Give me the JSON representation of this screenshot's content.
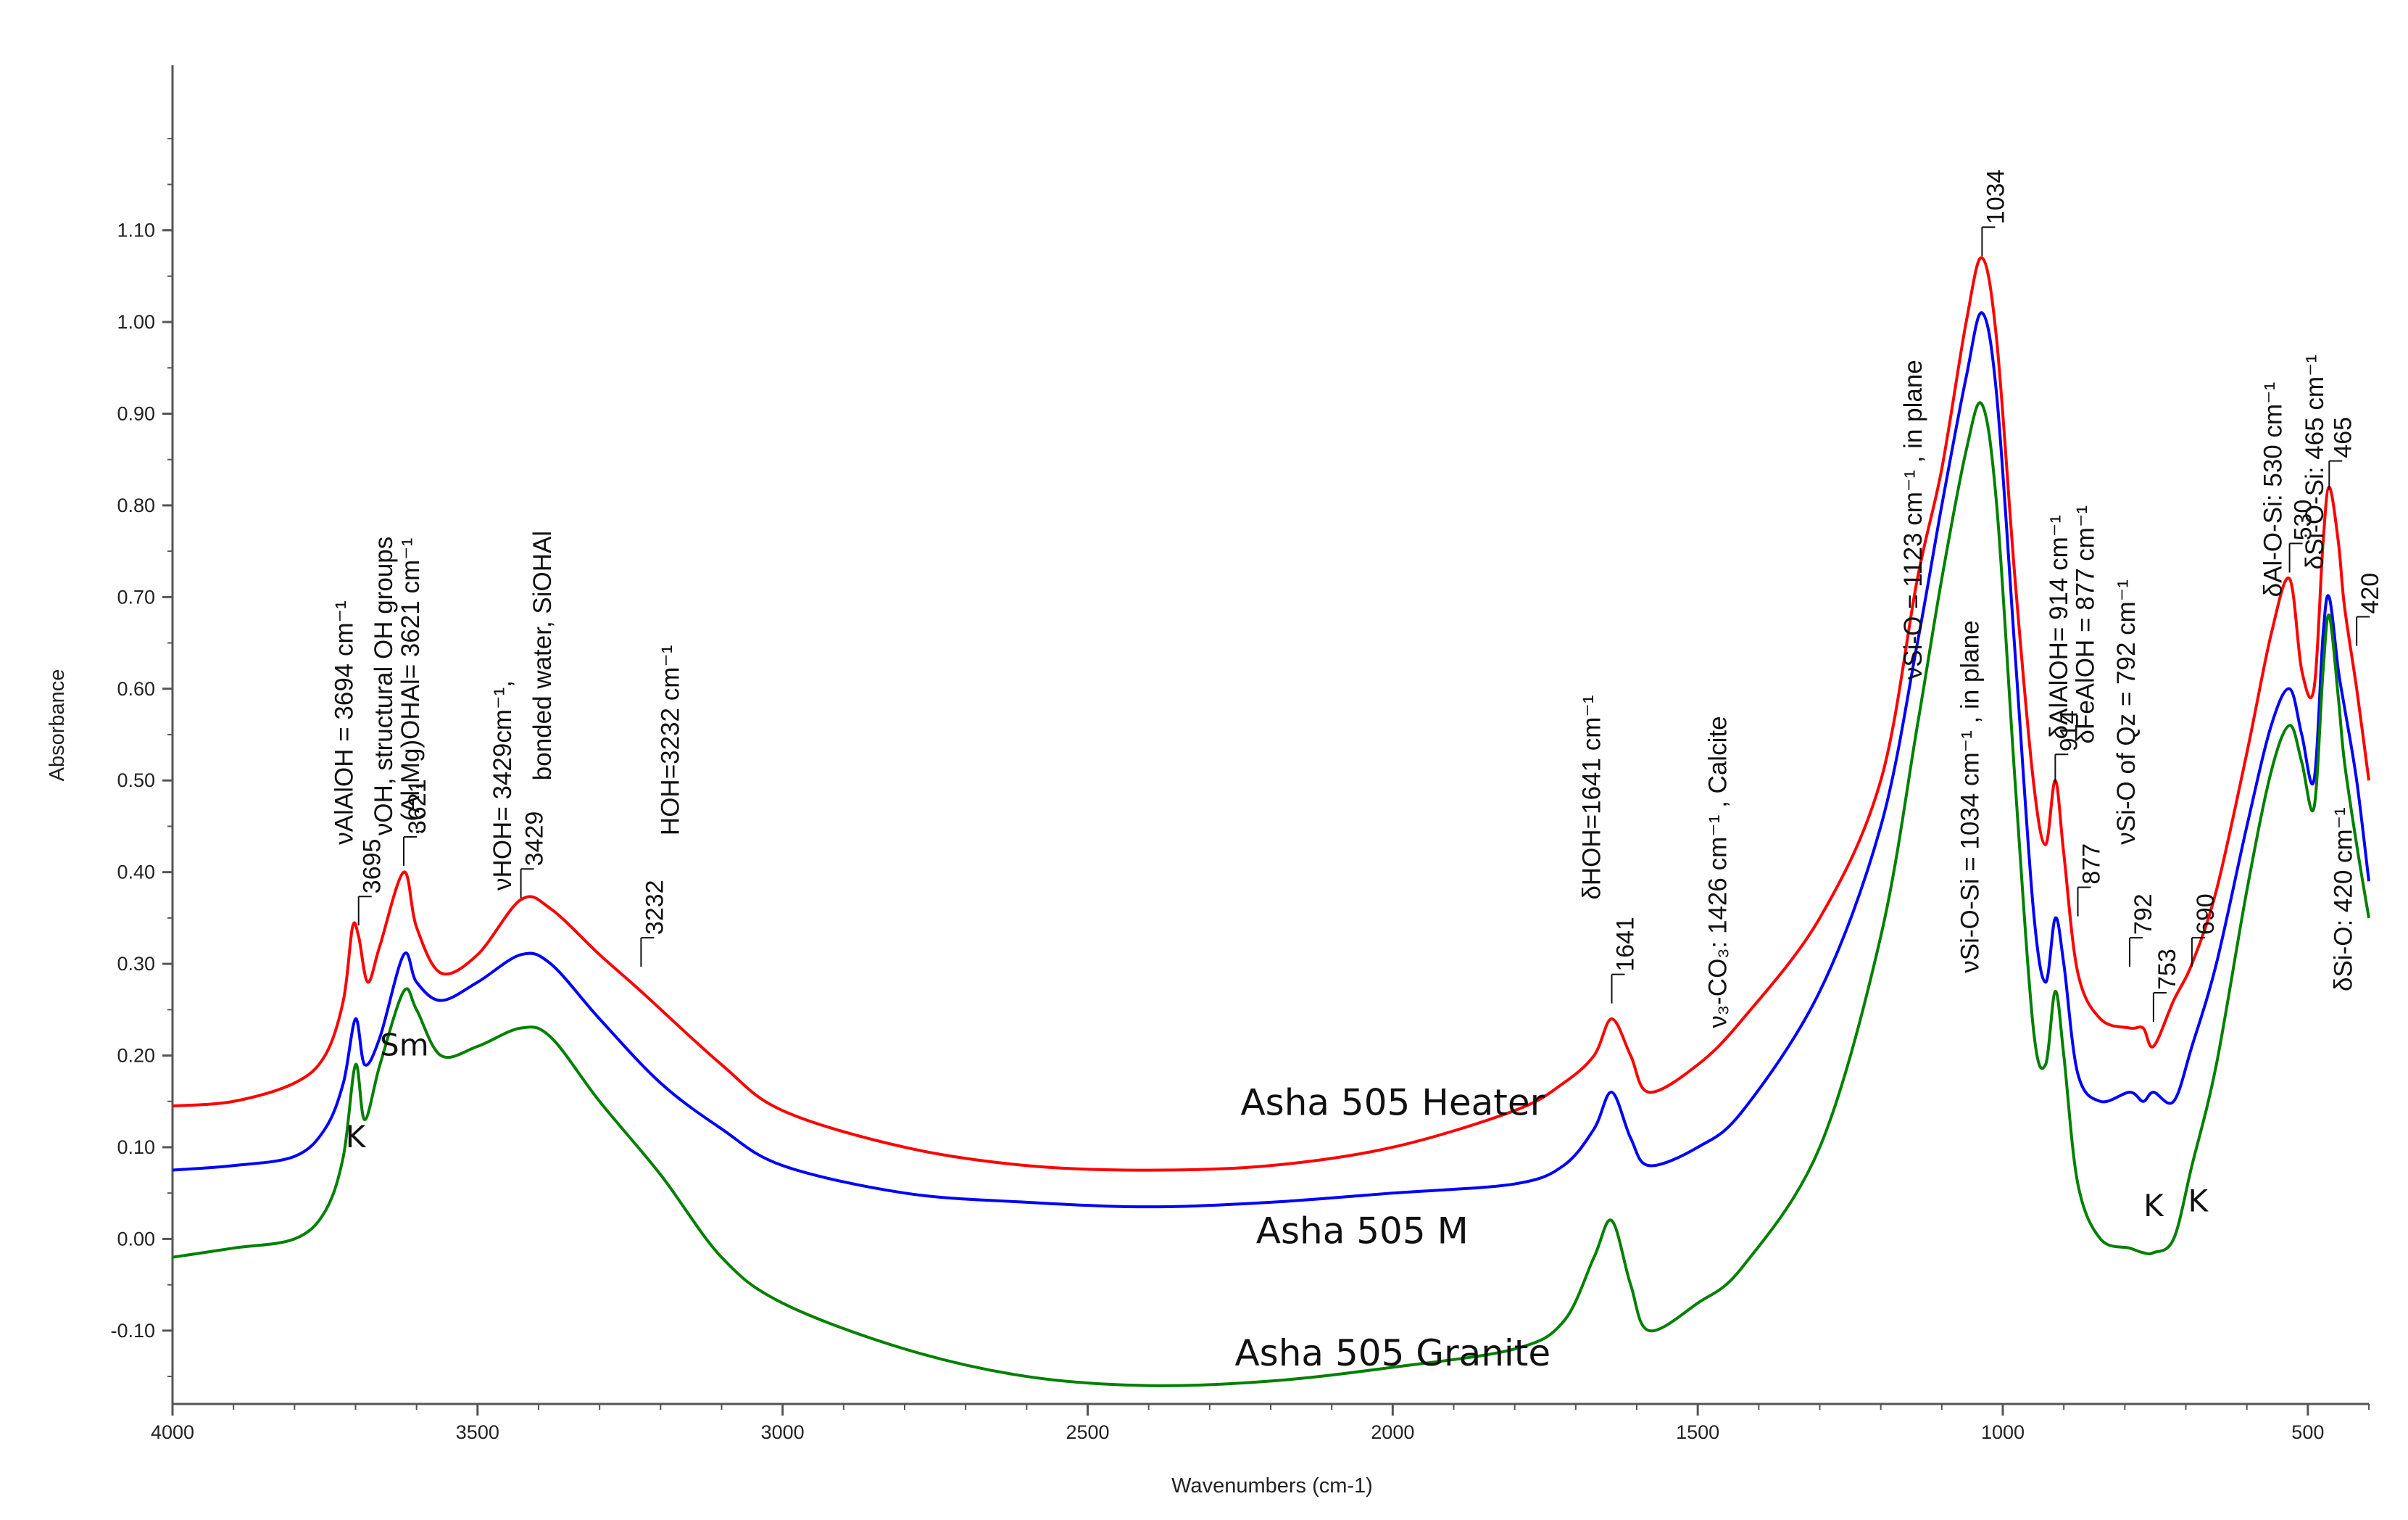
{
  "chart_data": {
    "type": "line",
    "title": "",
    "xlabel": "Wavenumbers (cm-1)",
    "ylabel": "Absorbance",
    "xlim": [
      4000,
      400
    ],
    "ylim": [
      -0.18,
      1.28
    ],
    "x_ticks": [
      4000,
      3500,
      3000,
      2500,
      2000,
      1500,
      1000,
      500
    ],
    "y_ticks": [
      -0.1,
      0.0,
      0.1,
      0.2,
      0.3,
      0.4,
      0.5,
      0.6,
      0.7,
      0.8,
      0.9,
      1.0,
      1.1
    ],
    "series": [
      {
        "name": "Asha 505 Heater",
        "color": "#ff0000",
        "label_at": [
          2000,
          0.135
        ],
        "points": [
          [
            4000,
            0.145
          ],
          [
            3900,
            0.15
          ],
          [
            3800,
            0.17
          ],
          [
            3750,
            0.2
          ],
          [
            3720,
            0.26
          ],
          [
            3705,
            0.34
          ],
          [
            3695,
            0.33
          ],
          [
            3680,
            0.28
          ],
          [
            3660,
            0.32
          ],
          [
            3621,
            0.4
          ],
          [
            3600,
            0.34
          ],
          [
            3560,
            0.29
          ],
          [
            3500,
            0.31
          ],
          [
            3429,
            0.37
          ],
          [
            3380,
            0.36
          ],
          [
            3300,
            0.31
          ],
          [
            3232,
            0.27
          ],
          [
            3100,
            0.19
          ],
          [
            3000,
            0.14
          ],
          [
            2800,
            0.1
          ],
          [
            2600,
            0.08
          ],
          [
            2400,
            0.075
          ],
          [
            2200,
            0.08
          ],
          [
            2000,
            0.1
          ],
          [
            1800,
            0.14
          ],
          [
            1720,
            0.17
          ],
          [
            1670,
            0.2
          ],
          [
            1641,
            0.24
          ],
          [
            1610,
            0.2
          ],
          [
            1580,
            0.16
          ],
          [
            1500,
            0.19
          ],
          [
            1426,
            0.24
          ],
          [
            1300,
            0.35
          ],
          [
            1200,
            0.5
          ],
          [
            1140,
            0.72
          ],
          [
            1100,
            0.84
          ],
          [
            1060,
            1.0
          ],
          [
            1034,
            1.07
          ],
          [
            1010,
            0.98
          ],
          [
            980,
            0.72
          ],
          [
            950,
            0.5
          ],
          [
            930,
            0.43
          ],
          [
            914,
            0.5
          ],
          [
            900,
            0.42
          ],
          [
            877,
            0.29
          ],
          [
            840,
            0.24
          ],
          [
            792,
            0.23
          ],
          [
            770,
            0.23
          ],
          [
            753,
            0.21
          ],
          [
            720,
            0.26
          ],
          [
            690,
            0.3
          ],
          [
            650,
            0.38
          ],
          [
            600,
            0.53
          ],
          [
            560,
            0.66
          ],
          [
            530,
            0.72
          ],
          [
            510,
            0.62
          ],
          [
            490,
            0.6
          ],
          [
            475,
            0.76
          ],
          [
            465,
            0.82
          ],
          [
            450,
            0.76
          ],
          [
            440,
            0.69
          ],
          [
            420,
            0.6
          ],
          [
            400,
            0.5
          ]
        ]
      },
      {
        "name": "Asha 505 M",
        "color": "#0000ff",
        "label_at": [
          2050,
          -0.005
        ],
        "points": [
          [
            4000,
            0.075
          ],
          [
            3900,
            0.08
          ],
          [
            3800,
            0.09
          ],
          [
            3750,
            0.12
          ],
          [
            3720,
            0.17
          ],
          [
            3700,
            0.24
          ],
          [
            3685,
            0.19
          ],
          [
            3660,
            0.22
          ],
          [
            3621,
            0.31
          ],
          [
            3600,
            0.28
          ],
          [
            3560,
            0.26
          ],
          [
            3500,
            0.28
          ],
          [
            3429,
            0.31
          ],
          [
            3380,
            0.3
          ],
          [
            3300,
            0.24
          ],
          [
            3200,
            0.17
          ],
          [
            3100,
            0.12
          ],
          [
            3000,
            0.08
          ],
          [
            2800,
            0.05
          ],
          [
            2600,
            0.04
          ],
          [
            2400,
            0.035
          ],
          [
            2200,
            0.04
          ],
          [
            2000,
            0.05
          ],
          [
            1800,
            0.06
          ],
          [
            1720,
            0.08
          ],
          [
            1670,
            0.12
          ],
          [
            1641,
            0.16
          ],
          [
            1610,
            0.11
          ],
          [
            1580,
            0.08
          ],
          [
            1500,
            0.1
          ],
          [
            1426,
            0.14
          ],
          [
            1300,
            0.27
          ],
          [
            1200,
            0.45
          ],
          [
            1140,
            0.65
          ],
          [
            1100,
            0.8
          ],
          [
            1060,
            0.94
          ],
          [
            1034,
            1.01
          ],
          [
            1010,
            0.92
          ],
          [
            980,
            0.64
          ],
          [
            950,
            0.36
          ],
          [
            930,
            0.28
          ],
          [
            914,
            0.35
          ],
          [
            900,
            0.3
          ],
          [
            877,
            0.18
          ],
          [
            840,
            0.15
          ],
          [
            792,
            0.16
          ],
          [
            770,
            0.15
          ],
          [
            753,
            0.16
          ],
          [
            720,
            0.15
          ],
          [
            690,
            0.21
          ],
          [
            650,
            0.3
          ],
          [
            600,
            0.45
          ],
          [
            560,
            0.56
          ],
          [
            530,
            0.6
          ],
          [
            510,
            0.55
          ],
          [
            490,
            0.5
          ],
          [
            475,
            0.66
          ],
          [
            465,
            0.7
          ],
          [
            450,
            0.62
          ],
          [
            440,
            0.58
          ],
          [
            420,
            0.5
          ],
          [
            400,
            0.39
          ]
        ]
      },
      {
        "name": "Asha 505 Granite",
        "color": "#008000",
        "label_at": [
          2000,
          -0.138
        ],
        "points": [
          [
            4000,
            -0.02
          ],
          [
            3900,
            -0.01
          ],
          [
            3800,
            0.0
          ],
          [
            3750,
            0.03
          ],
          [
            3720,
            0.09
          ],
          [
            3700,
            0.19
          ],
          [
            3685,
            0.13
          ],
          [
            3660,
            0.19
          ],
          [
            3621,
            0.27
          ],
          [
            3600,
            0.25
          ],
          [
            3560,
            0.2
          ],
          [
            3500,
            0.21
          ],
          [
            3429,
            0.23
          ],
          [
            3380,
            0.22
          ],
          [
            3300,
            0.15
          ],
          [
            3200,
            0.07
          ],
          [
            3100,
            -0.02
          ],
          [
            3000,
            -0.07
          ],
          [
            2800,
            -0.12
          ],
          [
            2600,
            -0.15
          ],
          [
            2400,
            -0.16
          ],
          [
            2200,
            -0.155
          ],
          [
            2000,
            -0.14
          ],
          [
            1800,
            -0.12
          ],
          [
            1720,
            -0.09
          ],
          [
            1670,
            -0.02
          ],
          [
            1641,
            0.02
          ],
          [
            1610,
            -0.05
          ],
          [
            1580,
            -0.1
          ],
          [
            1500,
            -0.07
          ],
          [
            1426,
            -0.03
          ],
          [
            1300,
            0.1
          ],
          [
            1200,
            0.33
          ],
          [
            1140,
            0.56
          ],
          [
            1100,
            0.72
          ],
          [
            1060,
            0.86
          ],
          [
            1034,
            0.91
          ],
          [
            1010,
            0.8
          ],
          [
            980,
            0.5
          ],
          [
            950,
            0.23
          ],
          [
            930,
            0.19
          ],
          [
            914,
            0.27
          ],
          [
            900,
            0.2
          ],
          [
            877,
            0.06
          ],
          [
            840,
            0.0
          ],
          [
            792,
            -0.01
          ],
          [
            770,
            -0.015
          ],
          [
            753,
            -0.015
          ],
          [
            720,
            0.0
          ],
          [
            690,
            0.08
          ],
          [
            650,
            0.19
          ],
          [
            600,
            0.38
          ],
          [
            560,
            0.51
          ],
          [
            530,
            0.56
          ],
          [
            510,
            0.52
          ],
          [
            490,
            0.47
          ],
          [
            475,
            0.62
          ],
          [
            465,
            0.68
          ],
          [
            450,
            0.59
          ],
          [
            440,
            0.52
          ],
          [
            420,
            0.43
          ],
          [
            400,
            0.35
          ]
        ]
      }
    ],
    "peak_labels": [
      {
        "text": "3695",
        "x": 3695,
        "y": 0.345
      },
      {
        "text": "3621",
        "x": 3621,
        "y": 0.41
      },
      {
        "text": "3429",
        "x": 3429,
        "y": 0.375
      },
      {
        "text": "3232",
        "x": 3232,
        "y": 0.3
      },
      {
        "text": "1641",
        "x": 1641,
        "y": 0.26
      },
      {
        "text": "1034",
        "x": 1034,
        "y": 1.075
      },
      {
        "text": "914",
        "x": 914,
        "y": 0.5
      },
      {
        "text": "877",
        "x": 877,
        "y": 0.355
      },
      {
        "text": "792",
        "x": 792,
        "y": 0.3
      },
      {
        "text": "753",
        "x": 753,
        "y": 0.24
      },
      {
        "text": "690",
        "x": 690,
        "y": 0.3
      },
      {
        "text": "530",
        "x": 530,
        "y": 0.73
      },
      {
        "text": "465",
        "x": 465,
        "y": 0.82
      },
      {
        "text": "420",
        "x": 420,
        "y": 0.65
      }
    ],
    "annotations": [
      {
        "text": "νAlAlOH = 3694 cm⁻¹",
        "x": 3705,
        "y": 0.43
      },
      {
        "text": "νOH, structural OH groups",
        "x": 3640,
        "y": 0.44
      },
      {
        "text": ", (Al,Mg)OHAl= 3621 cm⁻¹",
        "x": 3596,
        "y": 0.44
      },
      {
        "text": "νHOH= 3429cm⁻¹,",
        "x": 3445,
        "y": 0.38
      },
      {
        "text": "bonded water, SiOHAl",
        "x": 3380,
        "y": 0.5
      },
      {
        "text": "HOH=3232 cm⁻¹",
        "x": 3170,
        "y": 0.44
      },
      {
        "text": "δHOH=1641 cm⁻¹",
        "x": 1660,
        "y": 0.37
      },
      {
        "text": "ν₃-CO₃: 1426 cm⁻¹ , Calcite",
        "x": 1453,
        "y": 0.23
      },
      {
        "text": "νSi-O = 1123 cm⁻¹ , in plane",
        "x": 1133,
        "y": 0.61
      },
      {
        "text": "νSi-O-Si = 1034 cm⁻¹ , in plane",
        "x": 1040,
        "y": 0.29
      },
      {
        "text": "δAlAlOH= 914 cm⁻¹",
        "x": 894,
        "y": 0.545
      },
      {
        "text": "δFeAlOH = 877 cm⁻¹",
        "x": 851,
        "y": 0.54
      },
      {
        "text": "νSi-O of Qz = 792 cm⁻¹",
        "x": 784,
        "y": 0.43
      },
      {
        "text": "δAl-O-Si: 530 cm⁻¹",
        "x": 543,
        "y": 0.7
      },
      {
        "text": "δSi-O-Si: 465 cm⁻¹",
        "x": 475,
        "y": 0.73
      },
      {
        "text": "δSi-O: 420 cm⁻¹",
        "x": 428,
        "y": 0.27
      }
    ],
    "mineral_markers": [
      {
        "text": "K",
        "x": 3700,
        "y": 0.1
      },
      {
        "text": "Sm",
        "x": 3620,
        "y": 0.2
      },
      {
        "text": "K",
        "x": 753,
        "y": 0.025
      },
      {
        "text": "K",
        "x": 680,
        "y": 0.03
      }
    ]
  }
}
